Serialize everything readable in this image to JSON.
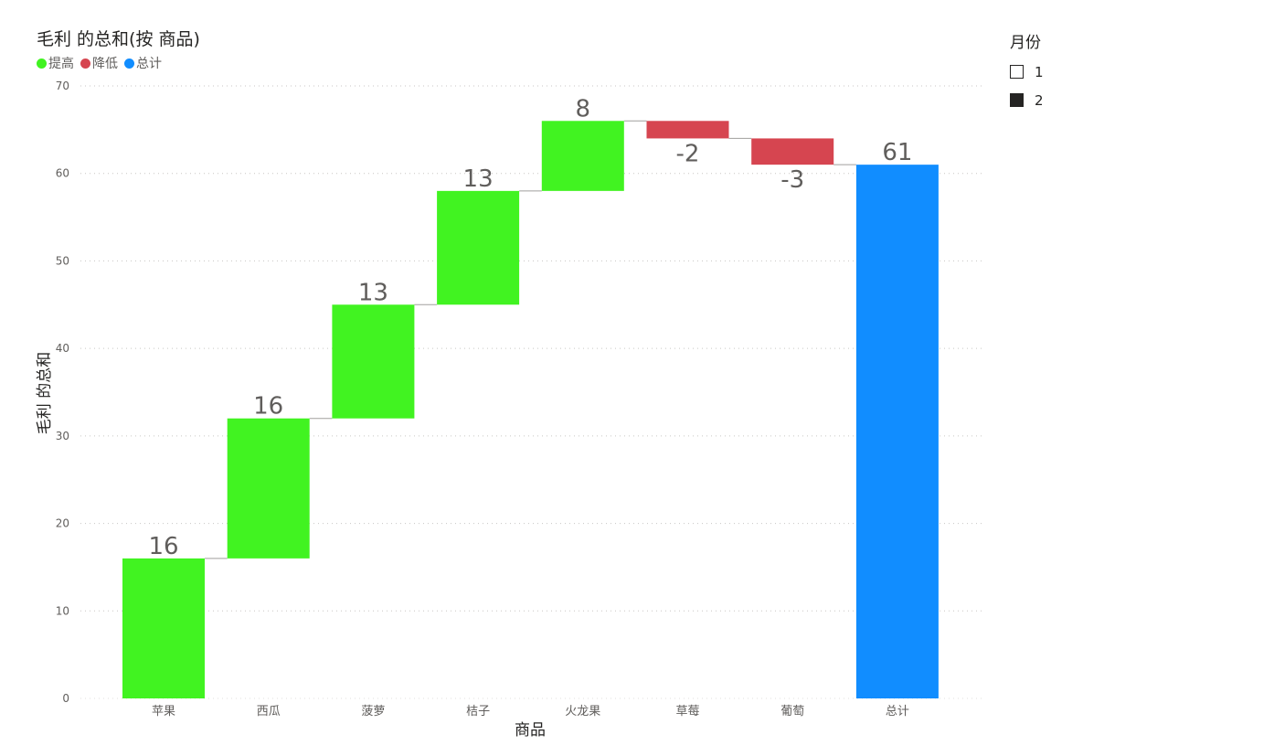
{
  "chart_data": {
    "type": "waterfall",
    "title": "毛利 的总和(按 商品)",
    "xlabel": "商品",
    "ylabel": "毛利 的总和",
    "ylim": [
      0,
      70
    ],
    "yticks": [
      0,
      10,
      20,
      30,
      40,
      50,
      60,
      70
    ],
    "grid": true,
    "legend_position": "top-left",
    "legend": [
      {
        "label": "提高",
        "color": "#41F321"
      },
      {
        "label": "降低",
        "color": "#D64550"
      },
      {
        "label": "总计",
        "color": "#118DFF"
      }
    ],
    "categories": [
      "苹果",
      "西瓜",
      "菠萝",
      "桔子",
      "火龙果",
      "草莓",
      "葡萄",
      "总计"
    ],
    "values": [
      16,
      16,
      13,
      13,
      8,
      -2,
      -3,
      61
    ],
    "labels": [
      "16",
      "16",
      "13",
      "13",
      "8",
      "-2",
      "-3",
      "61"
    ],
    "total_index": 7
  },
  "slicer": {
    "title": "月份",
    "items": [
      {
        "label": "1",
        "checked": false
      },
      {
        "label": "2",
        "checked": true
      }
    ]
  }
}
